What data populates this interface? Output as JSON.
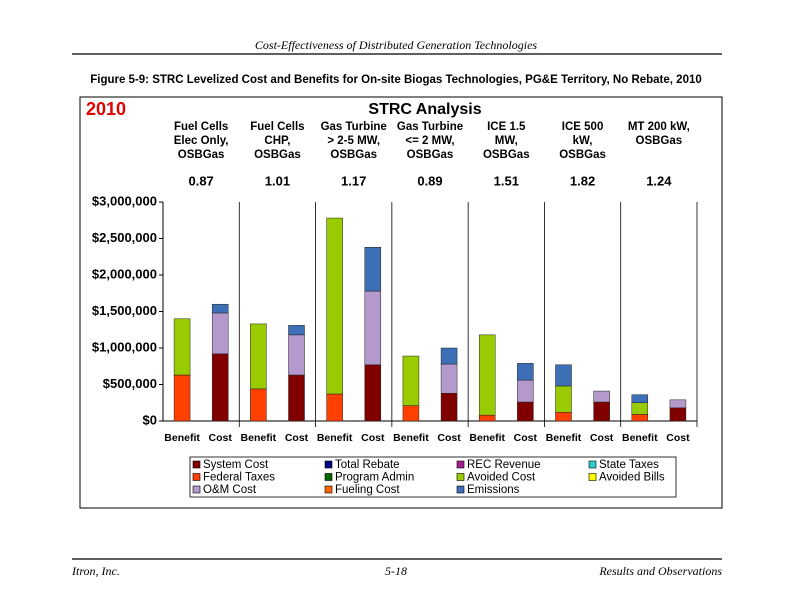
{
  "header": {
    "title": "Cost-Effectiveness of Distributed Generation Technologies"
  },
  "figure": {
    "caption": "Figure 5-9:  STRC Levelized Cost and Benefits for On-site Biogas Technologies, PG&E Territory, No Rebate, 2010"
  },
  "chart_data": {
    "type": "stacked-bar",
    "title": "STRC Analysis",
    "year_label": "2010",
    "groups": [
      {
        "lines": [
          "Fuel Cells",
          "Elec Only,",
          "OSBGas"
        ],
        "ratio": 0.87
      },
      {
        "lines": [
          "Fuel Cells",
          "CHP,",
          "OSBGas"
        ],
        "ratio": 1.01
      },
      {
        "lines": [
          "Gas Turbine",
          "> 2-5 MW,",
          "OSBGas"
        ],
        "ratio": 1.17
      },
      {
        "lines": [
          "Gas Turbine",
          "<= 2 MW,",
          "OSBGas"
        ],
        "ratio": 0.89
      },
      {
        "lines": [
          "ICE 1.5",
          "MW,",
          "OSBGas"
        ],
        "ratio": 1.51
      },
      {
        "lines": [
          "ICE 500",
          "kW,",
          "OSBGas"
        ],
        "ratio": 1.82
      },
      {
        "lines": [
          "MT 200 kW,",
          "OSBGas"
        ],
        "ratio": 1.24
      }
    ],
    "categories": [
      "Benefit",
      "Cost",
      "Benefit",
      "Cost",
      "Benefit",
      "Cost",
      "Benefit",
      "Cost",
      "Benefit",
      "Cost",
      "Benefit",
      "Cost",
      "Benefit",
      "Cost"
    ],
    "ylim": [
      0,
      3000000
    ],
    "yticks": [
      {
        "value": 0,
        "label": "$0"
      },
      {
        "value": 500000,
        "label": "$500,000"
      },
      {
        "value": 1000000,
        "label": "$1,000,000"
      },
      {
        "value": 1500000,
        "label": "$1,500,000"
      },
      {
        "value": 2000000,
        "label": "$2,000,000"
      },
      {
        "value": 2500000,
        "label": "$2,500,000"
      },
      {
        "value": 3000000,
        "label": "$3,000,000"
      }
    ],
    "series": [
      {
        "name": "System Cost",
        "color": "#800000",
        "values": [
          null,
          920000,
          null,
          630000,
          null,
          770000,
          null,
          380000,
          null,
          260000,
          null,
          260000,
          null,
          180000
        ]
      },
      {
        "name": "Total Rebate",
        "color": "#000080",
        "values": [
          null,
          null,
          null,
          null,
          null,
          null,
          null,
          null,
          null,
          null,
          null,
          null,
          null,
          null
        ]
      },
      {
        "name": "REC Revenue",
        "color": "#a0208f",
        "values": [
          null,
          null,
          null,
          null,
          null,
          null,
          null,
          null,
          null,
          null,
          null,
          null,
          null,
          null
        ]
      },
      {
        "name": "State Taxes",
        "color": "#33cccc",
        "values": [
          null,
          null,
          null,
          null,
          null,
          null,
          null,
          null,
          null,
          null,
          null,
          null,
          null,
          null
        ]
      },
      {
        "name": "Federal Taxes",
        "color": "#ff4000",
        "values": [
          630000,
          null,
          440000,
          null,
          370000,
          null,
          210000,
          null,
          80000,
          null,
          120000,
          null,
          90000,
          null
        ]
      },
      {
        "name": "Program Admin",
        "color": "#006600",
        "values": [
          null,
          null,
          null,
          null,
          null,
          null,
          null,
          null,
          null,
          null,
          null,
          null,
          null,
          null
        ]
      },
      {
        "name": "Avoided Cost",
        "color": "#99cc00",
        "values": [
          770000,
          null,
          890000,
          null,
          2410000,
          null,
          680000,
          null,
          1100000,
          null,
          360000,
          null,
          160000,
          null
        ]
      },
      {
        "name": "Avoided Bills",
        "color": "#ffff00",
        "values": [
          null,
          null,
          null,
          null,
          null,
          null,
          null,
          null,
          null,
          null,
          null,
          null,
          null,
          null
        ]
      },
      {
        "name": "O&M Cost",
        "color": "#b399cc",
        "values": [
          null,
          560000,
          null,
          550000,
          null,
          1010000,
          null,
          400000,
          null,
          300000,
          null,
          150000,
          null,
          110000
        ]
      },
      {
        "name": "Fueling Cost",
        "color": "#ff6600",
        "values": [
          null,
          null,
          null,
          null,
          null,
          null,
          null,
          null,
          null,
          null,
          null,
          null,
          null,
          null
        ]
      },
      {
        "name": "Emissions",
        "color": "#3d6fb6",
        "values": [
          null,
          120000,
          null,
          130000,
          null,
          600000,
          null,
          220000,
          null,
          230000,
          290000,
          null,
          110000,
          null
        ]
      }
    ]
  },
  "footer": {
    "left": "Itron, Inc.",
    "center": "5-18",
    "right": "Results and Observations"
  }
}
